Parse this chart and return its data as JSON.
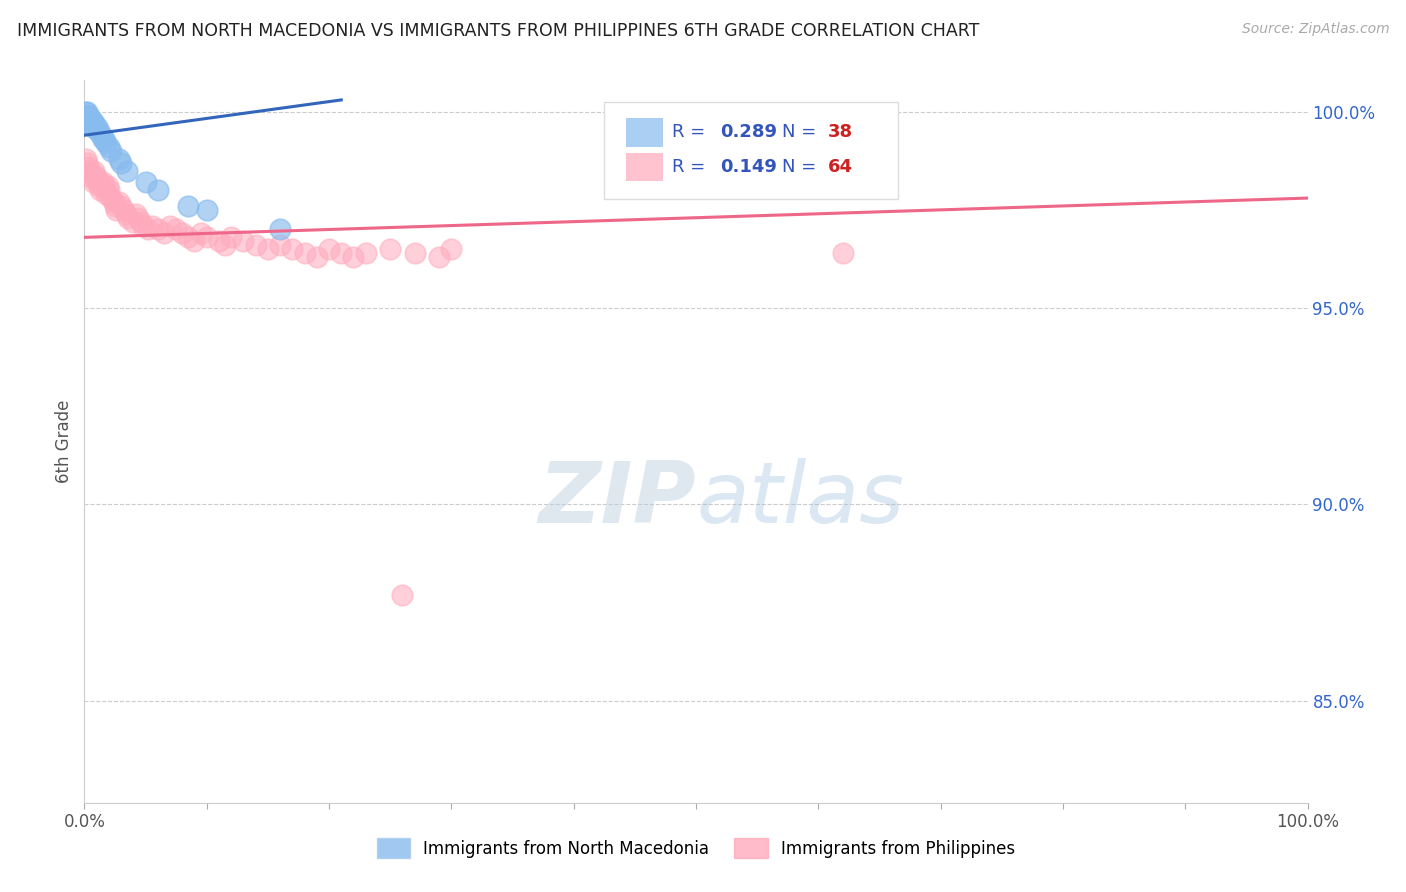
{
  "title": "IMMIGRANTS FROM NORTH MACEDONIA VS IMMIGRANTS FROM PHILIPPINES 6TH GRADE CORRELATION CHART",
  "source": "Source: ZipAtlas.com",
  "ylabel": "6th Grade",
  "right_yticks": [
    1.0,
    0.95,
    0.9,
    0.85
  ],
  "right_ytick_labels": [
    "100.0%",
    "95.0%",
    "90.0%",
    "85.0%"
  ],
  "legend_label1": "Immigrants from North Macedonia",
  "legend_label2": "Immigrants from Philippines",
  "R1": 0.289,
  "N1": 38,
  "R2": 0.149,
  "N2": 64,
  "color_blue": "#88BBEE",
  "color_pink": "#FFAABC",
  "color_blue_line": "#3366BB",
  "color_pink_line": "#EE6688",
  "title_color": "#222222",
  "source_color": "#AAAAAA",
  "legend_R_color": "#3355BB",
  "legend_N_color": "#CC2222",
  "xmin": 0.0,
  "xmax": 1.0,
  "ymin": 0.824,
  "ymax": 1.008,
  "blue_x": [
    0.001,
    0.001,
    0.001,
    0.002,
    0.002,
    0.002,
    0.002,
    0.003,
    0.003,
    0.003,
    0.004,
    0.004,
    0.004,
    0.005,
    0.005,
    0.006,
    0.006,
    0.007,
    0.007,
    0.008,
    0.009,
    0.01,
    0.011,
    0.012,
    0.014,
    0.015,
    0.016,
    0.018,
    0.02,
    0.022,
    0.028,
    0.03,
    0.035,
    0.05,
    0.06,
    0.085,
    0.1,
    0.16
  ],
  "blue_y": [
    1.0,
    0.999,
    0.998,
    1.0,
    0.999,
    0.998,
    0.997,
    0.999,
    0.998,
    0.997,
    0.999,
    0.998,
    0.997,
    0.998,
    0.997,
    0.998,
    0.997,
    0.997,
    0.996,
    0.997,
    0.996,
    0.996,
    0.995,
    0.995,
    0.994,
    0.993,
    0.993,
    0.992,
    0.991,
    0.99,
    0.988,
    0.987,
    0.985,
    0.982,
    0.98,
    0.976,
    0.975,
    0.97
  ],
  "blue_trend_x": [
    0.0,
    0.21
  ],
  "blue_trend_y": [
    0.994,
    1.003
  ],
  "pink_x": [
    0.001,
    0.002,
    0.003,
    0.004,
    0.005,
    0.006,
    0.007,
    0.008,
    0.009,
    0.01,
    0.011,
    0.012,
    0.013,
    0.015,
    0.016,
    0.017,
    0.018,
    0.019,
    0.02,
    0.022,
    0.024,
    0.025,
    0.026,
    0.028,
    0.03,
    0.032,
    0.034,
    0.036,
    0.04,
    0.042,
    0.044,
    0.046,
    0.048,
    0.052,
    0.055,
    0.06,
    0.065,
    0.07,
    0.075,
    0.08,
    0.085,
    0.09,
    0.095,
    0.1,
    0.11,
    0.115,
    0.12,
    0.13,
    0.14,
    0.15,
    0.16,
    0.17,
    0.18,
    0.2,
    0.21,
    0.22,
    0.23,
    0.25,
    0.27,
    0.29,
    0.3,
    0.62,
    0.26,
    0.19
  ],
  "pink_y": [
    0.988,
    0.987,
    0.986,
    0.985,
    0.984,
    0.983,
    0.982,
    0.985,
    0.984,
    0.983,
    0.982,
    0.981,
    0.98,
    0.982,
    0.981,
    0.98,
    0.979,
    0.981,
    0.98,
    0.978,
    0.977,
    0.976,
    0.975,
    0.977,
    0.976,
    0.975,
    0.974,
    0.973,
    0.972,
    0.974,
    0.973,
    0.972,
    0.971,
    0.97,
    0.971,
    0.97,
    0.969,
    0.971,
    0.97,
    0.969,
    0.968,
    0.967,
    0.969,
    0.968,
    0.967,
    0.966,
    0.968,
    0.967,
    0.966,
    0.965,
    0.966,
    0.965,
    0.964,
    0.965,
    0.964,
    0.963,
    0.964,
    0.965,
    0.964,
    0.963,
    0.965,
    0.964,
    0.877,
    0.963
  ],
  "pink_trend_x": [
    0.0,
    1.0
  ],
  "pink_trend_y": [
    0.968,
    0.978
  ]
}
